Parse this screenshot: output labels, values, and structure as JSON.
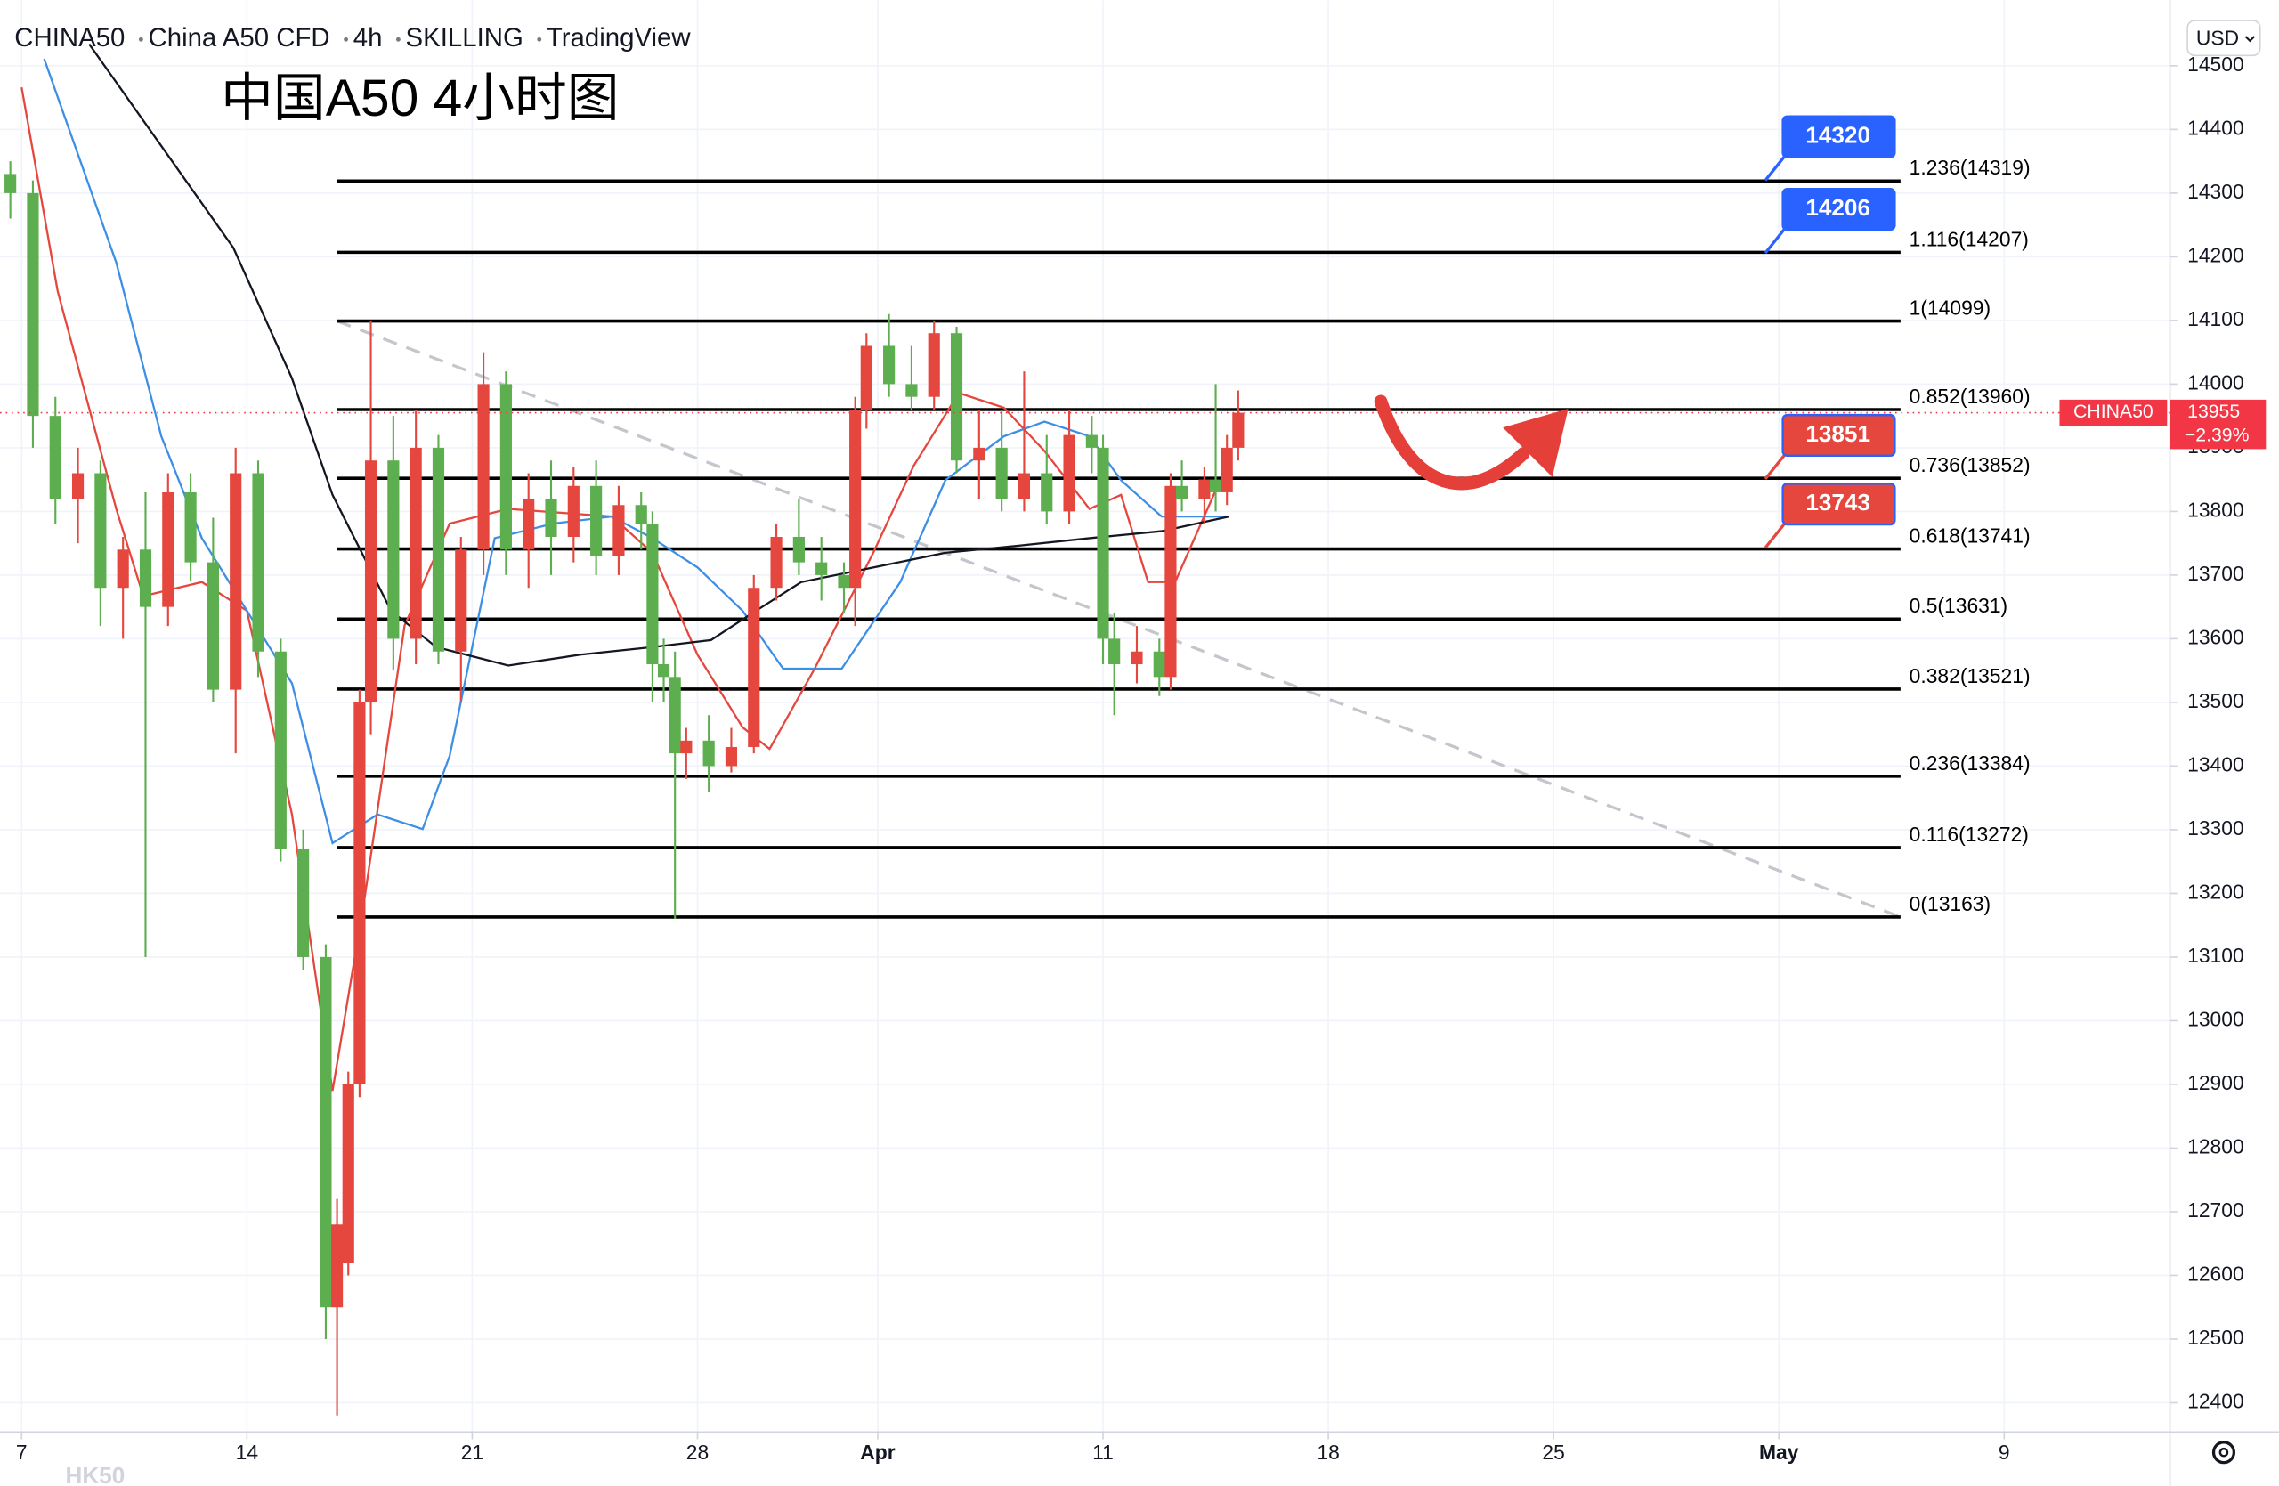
{
  "chart_data": {
    "type": "candlestick",
    "header": [
      "CHINA50",
      "China A50 CFD",
      "4h",
      "SKILLING",
      "TradingView"
    ],
    "title": "中国A50 4小时图",
    "currency": "USD",
    "watermark": "HK50",
    "up_color": "#e5473e",
    "down_color": "#5cae4e",
    "grid": true,
    "xlim": [
      -0.48,
      47.68
    ],
    "xticks": [
      {
        "value": 0,
        "label": "7"
      },
      {
        "value": 5,
        "label": "14"
      },
      {
        "value": 10,
        "label": "21"
      },
      {
        "value": 15,
        "label": "28"
      },
      {
        "value": 19,
        "label": "Apr"
      },
      {
        "value": 24,
        "label": "11"
      },
      {
        "value": 29,
        "label": "18"
      },
      {
        "value": 34,
        "label": "25"
      },
      {
        "value": 39,
        "label": "May"
      },
      {
        "value": 44,
        "label": "9"
      }
    ],
    "ylim": [
      12354,
      14603
    ],
    "yticks": [
      12400,
      12500,
      12600,
      12700,
      12800,
      12900,
      13000,
      13100,
      13200,
      13300,
      13400,
      13500,
      13600,
      13700,
      13800,
      13900,
      14000,
      14100,
      14200,
      14300,
      14400,
      14500
    ],
    "x": [
      -0.25,
      0.25,
      0.75,
      1.25,
      1.75,
      2.25,
      2.75,
      3.25,
      3.75,
      4.25,
      4.75,
      5.25,
      5.75,
      6.25,
      6.75,
      7.0,
      7.25,
      7.5,
      7.75,
      8.25,
      8.75,
      9.25,
      9.75,
      10.25,
      10.75,
      11.25,
      11.75,
      12.25,
      12.75,
      13.25,
      13.75,
      14.0,
      14.25,
      14.5,
      14.75,
      15.25,
      15.75,
      16.25,
      16.75,
      17.25,
      17.75,
      18.25,
      18.5,
      18.75,
      19.25,
      19.75,
      20.25,
      20.75,
      21.25,
      21.75,
      22.25,
      22.75,
      23.25,
      23.75,
      24.0,
      24.25,
      24.75,
      25.25,
      25.5,
      25.75,
      26.25,
      26.5,
      26.75,
      27.0
    ],
    "open": [
      14330,
      14300,
      13950,
      13820,
      13860,
      13680,
      13740,
      13650,
      13830,
      13720,
      13520,
      13860,
      13580,
      13270,
      13100,
      12550,
      12620,
      12900,
      13500,
      13880,
      13600,
      13900,
      13580,
      13740,
      14000,
      13740,
      13820,
      13760,
      13840,
      13730,
      13810,
      13780,
      13560,
      13540,
      13420,
      13440,
      13400,
      13430,
      13680,
      13760,
      13720,
      13700,
      13680,
      13960,
      14060,
      14000,
      13980,
      14080,
      13880,
      13900,
      13820,
      13860,
      13800,
      13920,
      13900,
      13600,
      13560,
      13580,
      13540,
      13840,
      13820,
      13850,
      13830,
      13900
    ],
    "high": [
      14350,
      14320,
      13980,
      13900,
      13880,
      13760,
      13830,
      13860,
      13860,
      13790,
      13900,
      13880,
      13600,
      13300,
      13120,
      12720,
      12920,
      13520,
      14100,
      13950,
      13960,
      13920,
      13760,
      14050,
      14020,
      13860,
      13880,
      13870,
      13880,
      13840,
      13830,
      13800,
      13600,
      13580,
      13460,
      13480,
      13460,
      13700,
      13780,
      13820,
      13760,
      13720,
      13980,
      14080,
      14110,
      14060,
      14100,
      14090,
      13960,
      13960,
      14020,
      13920,
      13960,
      13950,
      13920,
      13640,
      13620,
      13600,
      13860,
      13880,
      13870,
      14000,
      13920,
      13990
    ],
    "low": [
      14260,
      13900,
      13780,
      13750,
      13620,
      13600,
      13100,
      13620,
      13690,
      13500,
      13420,
      13540,
      13250,
      13080,
      12500,
      12380,
      12600,
      12880,
      13450,
      13550,
      13560,
      13560,
      13500,
      13700,
      13700,
      13680,
      13700,
      13720,
      13700,
      13700,
      13740,
      13500,
      13500,
      13160,
      13380,
      13360,
      13390,
      13420,
      13660,
      13700,
      13660,
      13640,
      13620,
      13930,
      13980,
      13960,
      13960,
      13860,
      13820,
      13800,
      13800,
      13780,
      13780,
      13860,
      13560,
      13480,
      13530,
      13510,
      13520,
      13800,
      13780,
      13800,
      13810,
      13880
    ],
    "close": [
      14300,
      13950,
      13820,
      13860,
      13680,
      13740,
      13650,
      13830,
      13720,
      13520,
      13860,
      13580,
      13270,
      13100,
      12550,
      12680,
      12900,
      13500,
      13880,
      13600,
      13900,
      13580,
      13740,
      14000,
      13740,
      13820,
      13760,
      13840,
      13730,
      13810,
      13780,
      13560,
      13540,
      13420,
      13440,
      13400,
      13430,
      13680,
      13760,
      13720,
      13700,
      13680,
      13960,
      14060,
      14000,
      13980,
      14080,
      13880,
      13900,
      13820,
      13860,
      13800,
      13920,
      13900,
      13600,
      13560,
      13580,
      13540,
      13840,
      13820,
      13850,
      13830,
      13900,
      13955
    ],
    "moving_averages": [
      {
        "color": "#e5473e",
        "x": [
          0,
          0.8,
          2.1,
          2.7,
          4.0,
          5.0,
          6.0,
          6.9,
          7.6,
          8.5,
          9.5,
          10.8,
          13.1,
          14.0,
          15.0,
          16.0,
          16.6,
          17.6,
          18.9,
          19.8,
          20.8,
          21.8,
          22.7,
          23.7,
          24.4,
          25.0,
          25.6,
          26.6
        ],
        "values": [
          14466,
          14146,
          13804,
          13667,
          13689,
          13644,
          13324,
          12890,
          13187,
          13621,
          13781,
          13804,
          13792,
          13735,
          13575,
          13461,
          13427,
          13553,
          13735,
          13872,
          13986,
          13963,
          13895,
          13804,
          13826,
          13689,
          13689,
          13849
        ]
      },
      {
        "color": "#3d8fe6",
        "x": [
          0.5,
          2.1,
          3.1,
          4.0,
          5.0,
          6.0,
          6.9,
          7.9,
          8.9,
          9.5,
          10.5,
          11.8,
          13.1,
          14.0,
          15.0,
          16.0,
          16.9,
          18.2,
          19.5,
          20.5,
          21.8,
          22.7,
          23.7,
          24.4,
          25.3,
          26.8
        ],
        "values": [
          14511,
          14191,
          13918,
          13758,
          13644,
          13530,
          13279,
          13324,
          13301,
          13416,
          13758,
          13781,
          13792,
          13758,
          13712,
          13644,
          13553,
          13553,
          13689,
          13849,
          13918,
          13941,
          13918,
          13849,
          13792,
          13792
        ]
      },
      {
        "color": "#131722",
        "x": [
          1.5,
          3.1,
          4.7,
          6.0,
          6.9,
          8.2,
          9.2,
          10.8,
          12.4,
          14.0,
          15.3,
          16.3,
          17.3,
          18.9,
          20.5,
          22.1,
          23.7,
          25.3,
          26.8
        ],
        "values": [
          14534,
          14374,
          14214,
          14009,
          13826,
          13644,
          13587,
          13558,
          13575,
          13587,
          13598,
          13644,
          13689,
          13712,
          13735,
          13746,
          13758,
          13769,
          13792
        ]
      }
    ],
    "fib_x": [
      7,
      41.7
    ],
    "fib_levels": [
      {
        "value": 14319,
        "label": "1.236(14319)"
      },
      {
        "value": 14207,
        "label": "1.116(14207)"
      },
      {
        "value": 14099,
        "label": "1(14099)"
      },
      {
        "value": 13960,
        "label": "0.852(13960)"
      },
      {
        "value": 13852,
        "label": "0.736(13852)"
      },
      {
        "value": 13741,
        "label": "0.618(13741)"
      },
      {
        "value": 13631,
        "label": "0.5(13631)"
      },
      {
        "value": 13521,
        "label": "0.382(13521)"
      },
      {
        "value": 13384,
        "label": "0.236(13384)"
      },
      {
        "value": 13272,
        "label": "0.116(13272)"
      },
      {
        "value": 13163,
        "label": "0(13163)"
      }
    ],
    "targets": [
      {
        "value": 14320,
        "color": "#2962ff"
      },
      {
        "value": 14206,
        "color": "#2962ff"
      },
      {
        "value": 13851,
        "color": "#e5473e"
      },
      {
        "value": 13743,
        "color": "#e5473e"
      }
    ],
    "target_x": 38.7,
    "trendline": {
      "x": [
        7,
        41.7
      ],
      "y": [
        14099,
        13163
      ]
    },
    "last_price": {
      "symbol": "CHINA50",
      "value": 13955,
      "change": "−2.39%",
      "color": "#f23645"
    }
  }
}
